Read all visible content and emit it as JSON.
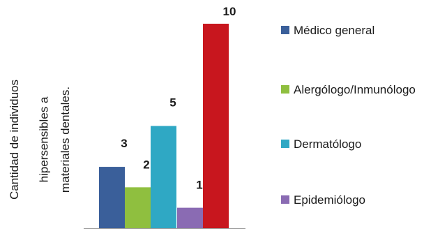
{
  "chart_data": {
    "type": "bar",
    "ylabel_lines": [
      "Cantidad de individuos",
      "hipersensibles a",
      "materiales dentales."
    ],
    "xlabel": "",
    "ylim": [
      0,
      10
    ],
    "grid": false,
    "legend": "right",
    "series": [
      {
        "name": "Médico general",
        "value": 3,
        "color": "#3a5f9a"
      },
      {
        "name": "Alergólogo/Inmunólogo",
        "value": 2,
        "color": "#8fbf3f"
      },
      {
        "name": "Dermatólogo",
        "value": 5,
        "color": "#2fa8c4"
      },
      {
        "name": "Epidemiólogo",
        "value": 1,
        "color": "#8a6bb3"
      },
      {
        "name": "",
        "value": 10,
        "color": "#c8161e"
      }
    ]
  }
}
